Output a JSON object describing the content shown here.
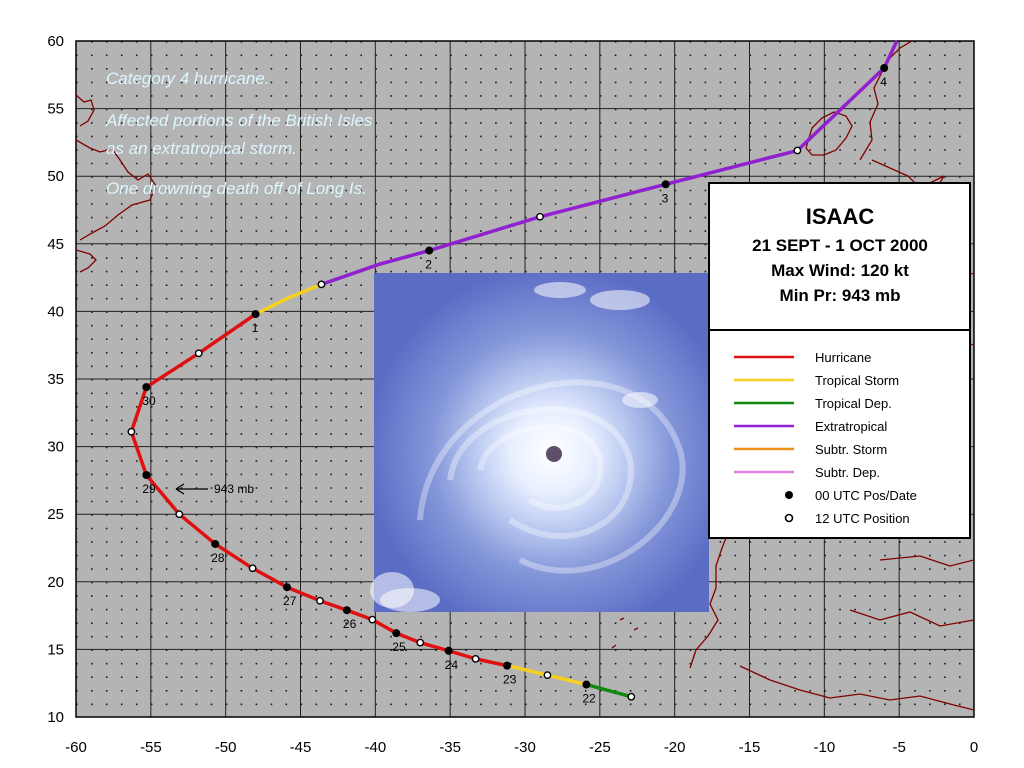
{
  "map": {
    "lon_range": [
      -60,
      0
    ],
    "lat_range": [
      10,
      60
    ],
    "x_ticks": [
      "-60",
      "-55",
      "-50",
      "-45",
      "-40",
      "-35",
      "-30",
      "-25",
      "-20",
      "-15",
      "-10",
      "-5",
      "0"
    ],
    "y_ticks": [
      "10",
      "15",
      "20",
      "25",
      "30",
      "35",
      "40",
      "45",
      "50",
      "55",
      "60"
    ],
    "background_color": "#b4b4b4",
    "grid": true,
    "coastline_color": "#800000"
  },
  "notes": [
    "Category 4 hurricane.",
    "Affected portions of the British Isles",
    "as an extratropical storm.",
    "One drowning death off of Long Is."
  ],
  "title_box": {
    "name": "ISAAC",
    "dates": "21 SEPT - 1 OCT 2000",
    "max_wind": "Max Wind: 120 kt",
    "min_pressure": "Min Pr: 943 mb"
  },
  "legend": [
    {
      "label": "Hurricane",
      "kind": "line",
      "color": "#e01010"
    },
    {
      "label": "Tropical Storm",
      "kind": "line",
      "color": "#f5d020"
    },
    {
      "label": "Tropical Dep.",
      "kind": "line",
      "color": "#108a10"
    },
    {
      "label": "Extratropical",
      "kind": "line",
      "color": "#9020d0"
    },
    {
      "label": "Subtr. Storm",
      "kind": "line",
      "color": "#f0901c"
    },
    {
      "label": "Subtr. Dep.",
      "kind": "line",
      "color": "#e080e0"
    },
    {
      "label": "00 UTC Pos/Date",
      "kind": "filled-dot",
      "color": "#000000"
    },
    {
      "label": "12 UTC Position",
      "kind": "open-dot",
      "color": "#000000"
    }
  ],
  "pressure_annotation": {
    "label": "943 mb",
    "lon": -53.3,
    "lat": 26.7
  },
  "track": [
    {
      "lon": -22.9,
      "lat": 11.5,
      "utc": "12",
      "status": "TD"
    },
    {
      "lon": -25.9,
      "lat": 12.4,
      "utc": "00",
      "date": "22",
      "status": "TD"
    },
    {
      "lon": -28.5,
      "lat": 13.1,
      "utc": "12",
      "status": "TS"
    },
    {
      "lon": -31.2,
      "lat": 13.8,
      "utc": "00",
      "date": "23",
      "status": "TS"
    },
    {
      "lon": -33.3,
      "lat": 14.3,
      "utc": "12",
      "status": "HU"
    },
    {
      "lon": -35.1,
      "lat": 14.9,
      "utc": "00",
      "date": "24",
      "status": "HU"
    },
    {
      "lon": -37.0,
      "lat": 15.5,
      "utc": "12",
      "status": "HU"
    },
    {
      "lon": -38.6,
      "lat": 16.2,
      "utc": "00",
      "date": "25",
      "status": "HU"
    },
    {
      "lon": -40.2,
      "lat": 17.2,
      "utc": "12",
      "status": "HU"
    },
    {
      "lon": -41.9,
      "lat": 17.9,
      "utc": "00",
      "date": "26",
      "status": "HU"
    },
    {
      "lon": -43.7,
      "lat": 18.6,
      "utc": "12",
      "status": "HU"
    },
    {
      "lon": -45.9,
      "lat": 19.6,
      "utc": "00",
      "date": "27",
      "status": "HU"
    },
    {
      "lon": -48.2,
      "lat": 21.0,
      "utc": "12",
      "status": "HU"
    },
    {
      "lon": -50.7,
      "lat": 22.8,
      "utc": "00",
      "date": "28",
      "status": "HU"
    },
    {
      "lon": -53.1,
      "lat": 25.0,
      "utc": "12",
      "status": "HU"
    },
    {
      "lon": -55.3,
      "lat": 27.9,
      "utc": "00",
      "date": "29",
      "status": "HU"
    },
    {
      "lon": -56.3,
      "lat": 31.1,
      "utc": "12",
      "status": "HU"
    },
    {
      "lon": -55.3,
      "lat": 34.4,
      "utc": "00",
      "date": "30",
      "status": "HU"
    },
    {
      "lon": -51.8,
      "lat": 36.9,
      "utc": "12",
      "status": "HU"
    },
    {
      "lon": -48.0,
      "lat": 39.8,
      "utc": "00",
      "date": "1",
      "status": "HU"
    },
    {
      "lon": -45.8,
      "lat": 41.0,
      "status": "TS"
    },
    {
      "lon": -43.6,
      "lat": 42.0,
      "utc": "12",
      "status": "TS"
    },
    {
      "lon": -39.7,
      "lat": 43.5,
      "status": "EX"
    },
    {
      "lon": -36.4,
      "lat": 44.5,
      "utc": "00",
      "date": "2",
      "status": "EX"
    },
    {
      "lon": -29.0,
      "lat": 47.0,
      "utc": "12",
      "status": "EX"
    },
    {
      "lon": -20.6,
      "lat": 49.4,
      "utc": "00",
      "date": "3",
      "status": "EX"
    },
    {
      "lon": -11.8,
      "lat": 51.9,
      "utc": "12",
      "status": "EX"
    },
    {
      "lon": -6.0,
      "lat": 58.0,
      "utc": "00",
      "date": "4",
      "status": "EX"
    },
    {
      "lon": -5.2,
      "lat": 59.9,
      "status": "EX"
    }
  ],
  "satellite_image": {
    "description_name": "satellite-image-isaac"
  }
}
